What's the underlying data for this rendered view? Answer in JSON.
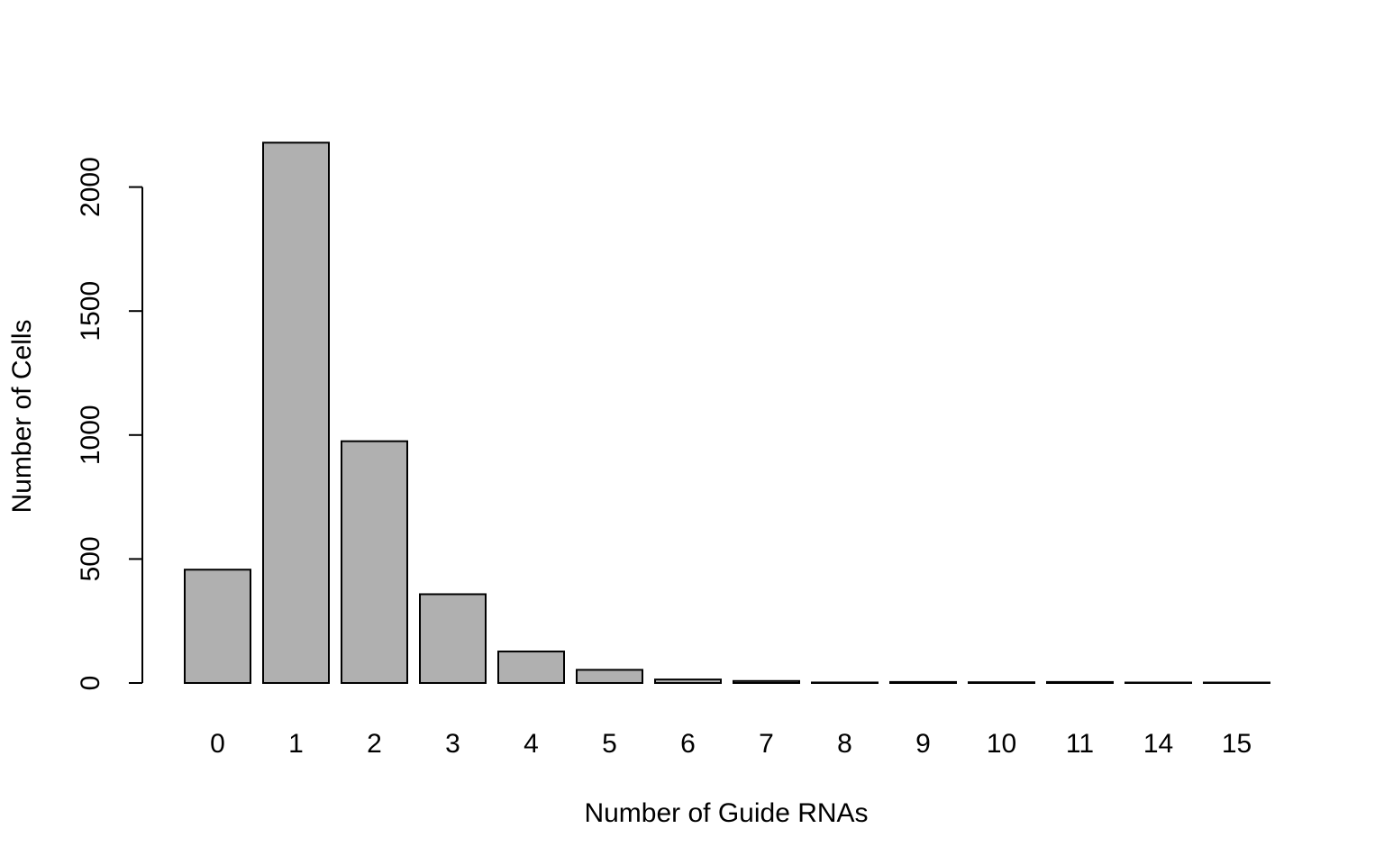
{
  "chart_data": {
    "type": "bar",
    "title": "",
    "xlabel": "Number of Guide RNAs",
    "ylabel": "Number of Cells",
    "categories": [
      "0",
      "1",
      "2",
      "3",
      "4",
      "5",
      "6",
      "7",
      "8",
      "9",
      "10",
      "11",
      "14",
      "15"
    ],
    "values": [
      457,
      2179,
      975,
      358,
      127,
      53,
      14,
      8,
      2,
      4,
      3,
      4,
      1,
      1
    ],
    "ylim": [
      0,
      2200
    ],
    "yticks": [
      0,
      500,
      1000,
      1500,
      2000
    ],
    "yticklabels": [
      "0",
      "500",
      "1000",
      "1500",
      "2000"
    ],
    "bar_color": "#b0b0b0",
    "bar_edge_color": "#000000",
    "grid": false,
    "legend": "none"
  }
}
